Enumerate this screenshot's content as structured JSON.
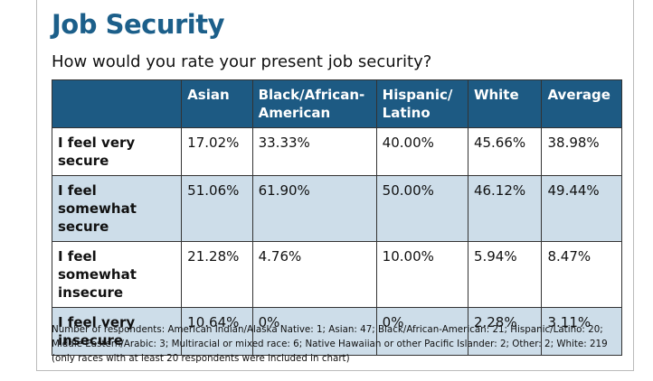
{
  "header": {
    "title": "Job Security",
    "subtitle": "How would you rate your present job security?"
  },
  "table": {
    "columns": [
      "",
      "Asian",
      "Black/African-American",
      "Hispanic/ Latino",
      "White",
      "Average"
    ],
    "rows": [
      [
        "I feel very secure",
        "17.02%",
        "33.33%",
        "40.00%",
        "45.66%",
        "38.98%"
      ],
      [
        "I feel somewhat secure",
        "51.06%",
        "61.90%",
        "50.00%",
        "46.12%",
        "49.44%"
      ],
      [
        "I feel somewhat insecure",
        "21.28%",
        "4.76%",
        "10.00%",
        "5.94%",
        "8.47%"
      ],
      [
        "I feel very insecure",
        "10.64%",
        "0%",
        "0%",
        "2.28%",
        "3.11%"
      ]
    ]
  },
  "footnote": [
    "Number of respondents: American Indian/Alaska Native: 1; Asian: 47; Black/African-American: 21; Hispanic/Latino: 20;",
    "Middle Eastern/Arabic: 3; Multiracial or mixed race: 6; Native Hawaiian or other Pacific Islander: 2; Other: 2; White: 219",
    "(only races with at least 20 respondents were included in chart)"
  ]
}
